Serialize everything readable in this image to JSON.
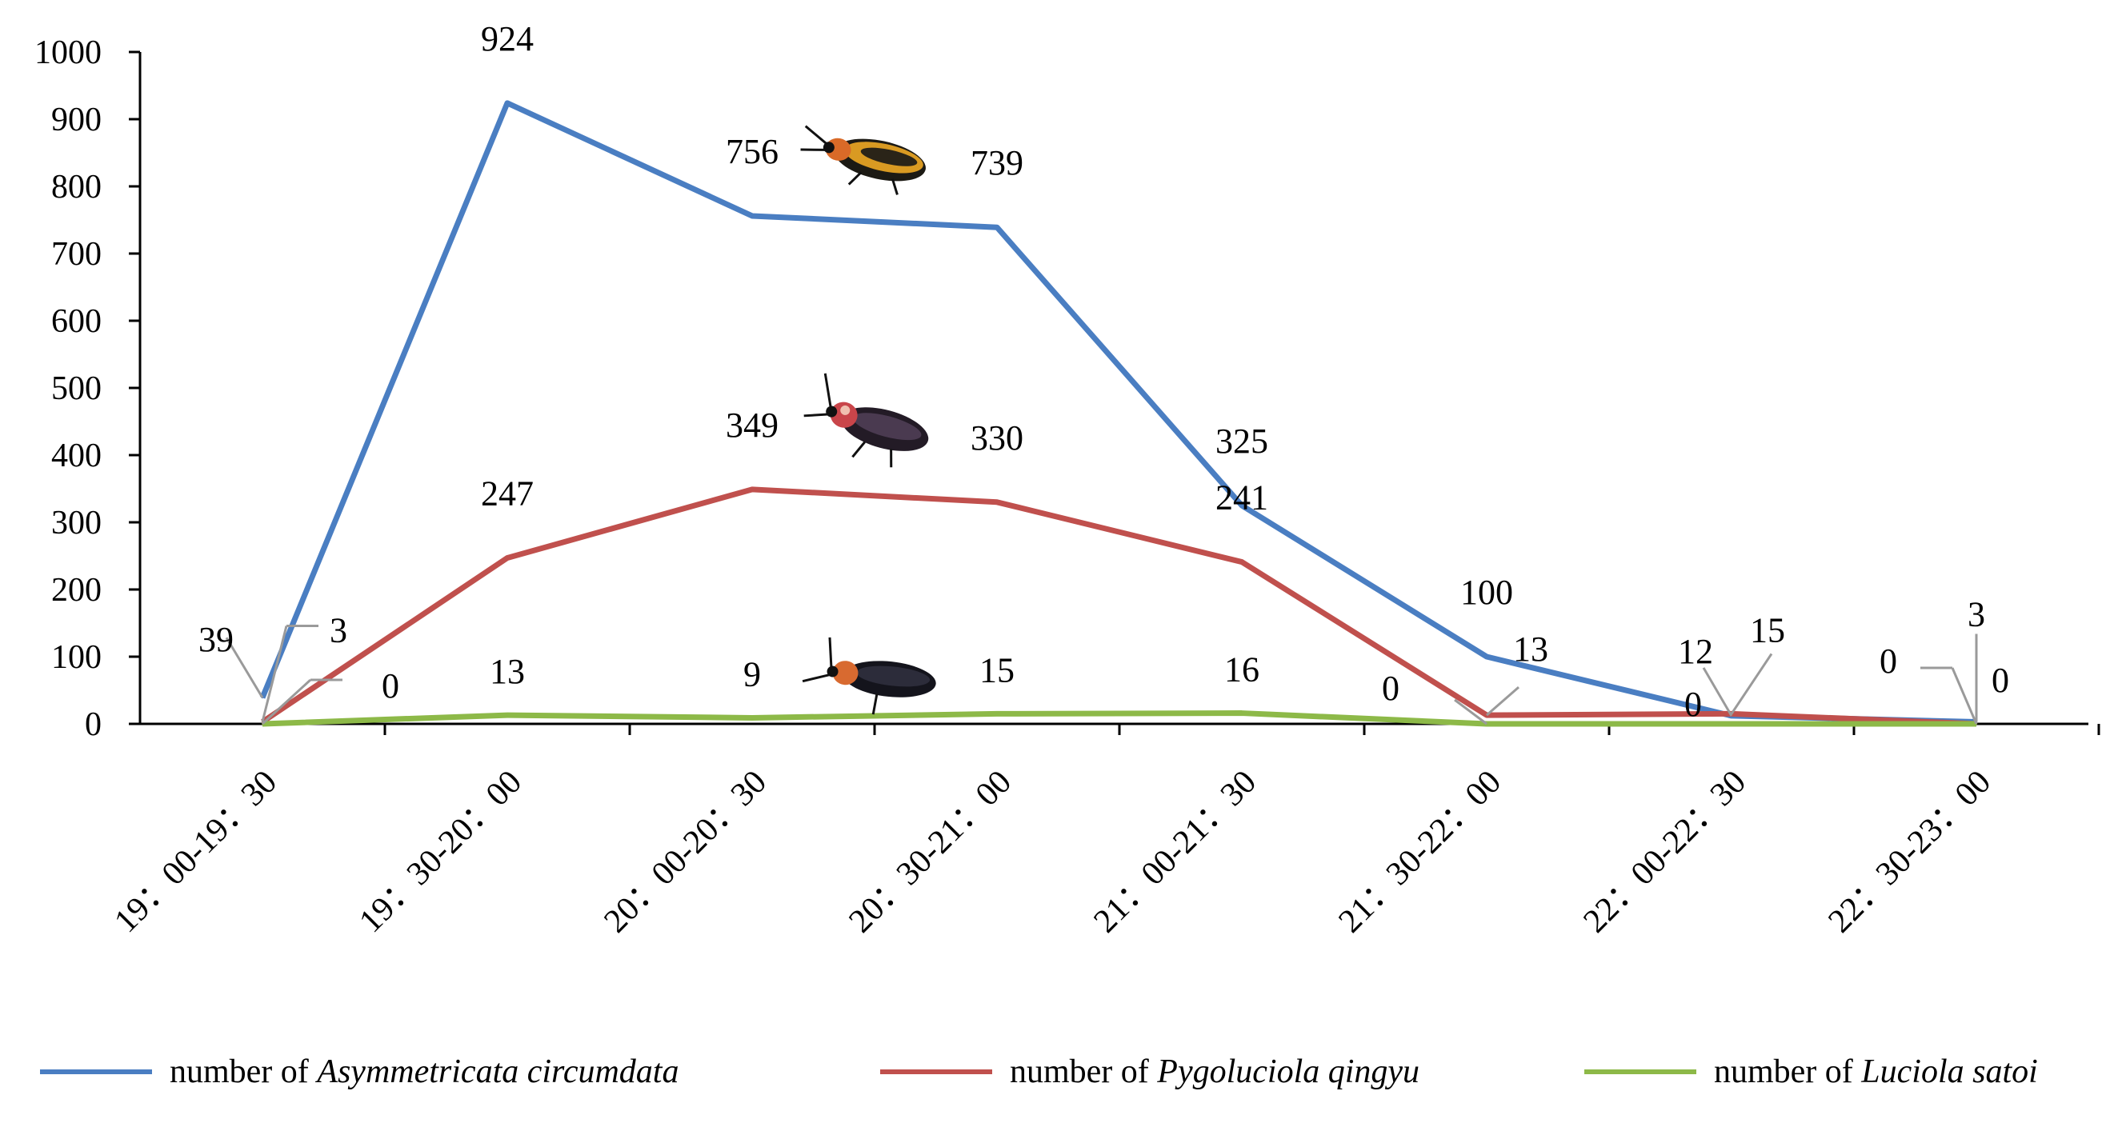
{
  "chart_data": {
    "type": "line",
    "categories": [
      "19：00-19：30",
      "19：30-20：00",
      "20：00-20：30",
      "20：30-21：00",
      "21：00-21：30",
      "21：30-22：00",
      "22：00-22：30",
      "22：30-23：00"
    ],
    "ylim": [
      0,
      1000
    ],
    "yticks": [
      0,
      100,
      200,
      300,
      400,
      500,
      600,
      700,
      800,
      900,
      1000
    ],
    "grid": false,
    "legend_position": "bottom",
    "series": [
      {
        "name_prefix": "number of ",
        "name_species": "Asymmetricata circumdata",
        "color": "#4a7ec2",
        "values": [
          39,
          924,
          756,
          739,
          325,
          100,
          12,
          3
        ]
      },
      {
        "name_prefix": "number of ",
        "name_species": "Pygoluciola qingyu",
        "color": "#c0504d",
        "values": [
          3,
          247,
          349,
          330,
          241,
          13,
          15,
          0
        ]
      },
      {
        "name_prefix": "number of ",
        "name_species": "Luciola satoi",
        "color": "#8db948",
        "values": [
          0,
          13,
          9,
          15,
          16,
          0,
          0,
          0
        ]
      }
    ],
    "icons": [
      "firefly-asymmetricata-icon",
      "firefly-pygoluciola-icon",
      "firefly-luciola-icon"
    ]
  }
}
